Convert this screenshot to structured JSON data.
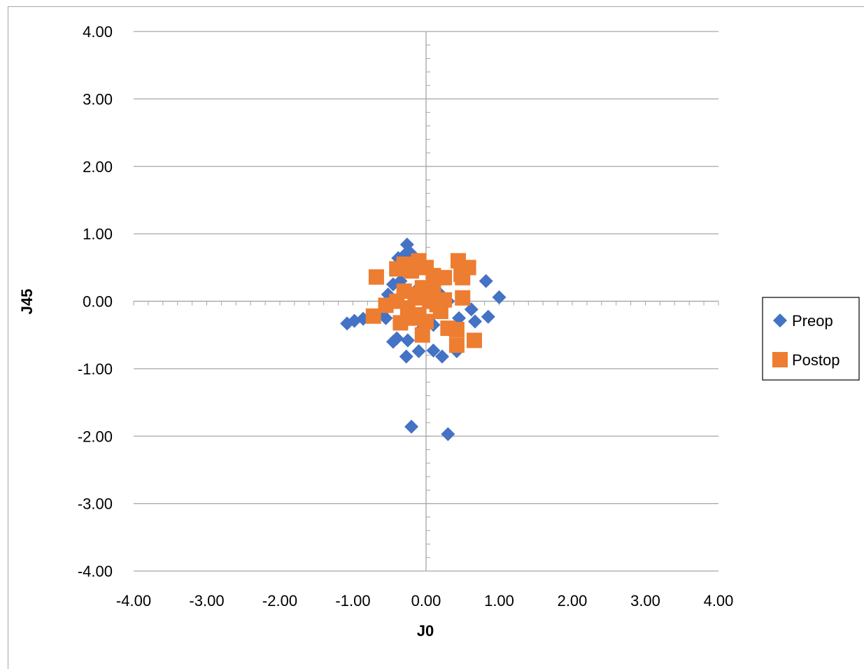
{
  "chart_data": {
    "type": "scatter",
    "xlabel": "J0",
    "ylabel": "J45",
    "xlim": [
      -4,
      4
    ],
    "ylim": [
      -4,
      4
    ],
    "x_ticks": [
      "-4.00",
      "-3.00",
      "-2.00",
      "-1.00",
      "0.00",
      "1.00",
      "2.00",
      "3.00",
      "4.00"
    ],
    "y_ticks": [
      "-4.00",
      "-3.00",
      "-2.00",
      "-1.00",
      "0.00",
      "1.00",
      "2.00",
      "3.00",
      "4.00"
    ],
    "grid": "horizontal major",
    "legend": "right",
    "series": [
      {
        "name": "Preop",
        "marker": "diamond",
        "color": "#4472c4",
        "points": [
          [
            -1.08,
            -0.33
          ],
          [
            -0.98,
            -0.29
          ],
          [
            -0.86,
            -0.26
          ],
          [
            -0.75,
            -0.22
          ],
          [
            -0.55,
            -0.25
          ],
          [
            -0.45,
            -0.6
          ],
          [
            -0.4,
            -0.55
          ],
          [
            -0.25,
            -0.58
          ],
          [
            -0.27,
            -0.82
          ],
          [
            -0.1,
            -0.74
          ],
          [
            0.1,
            -0.73
          ],
          [
            0.22,
            -0.82
          ],
          [
            0.42,
            -0.74
          ],
          [
            0.45,
            -0.25
          ],
          [
            0.62,
            -0.12
          ],
          [
            0.67,
            -0.3
          ],
          [
            0.85,
            -0.23
          ],
          [
            0.82,
            0.3
          ],
          [
            1.0,
            0.06
          ],
          [
            -0.26,
            0.84
          ],
          [
            -0.38,
            0.64
          ],
          [
            -0.3,
            0.68
          ],
          [
            -0.2,
            0.7
          ],
          [
            -0.45,
            0.25
          ],
          [
            -0.52,
            0.1
          ],
          [
            -0.35,
            0.3
          ],
          [
            -0.1,
            0.2
          ],
          [
            0.05,
            0.15
          ],
          [
            0.2,
            0.1
          ],
          [
            -0.15,
            -0.2
          ],
          [
            0.1,
            -0.35
          ],
          [
            -0.05,
            -0.4
          ],
          [
            0.3,
            0.0
          ],
          [
            -0.6,
            -0.15
          ],
          [
            -0.2,
            -1.86
          ],
          [
            0.3,
            -1.97
          ]
        ]
      },
      {
        "name": "Postop",
        "marker": "square",
        "color": "#ed7d31",
        "points": [
          [
            -0.68,
            0.36
          ],
          [
            -0.72,
            -0.22
          ],
          [
            -0.55,
            -0.06
          ],
          [
            -0.4,
            0.48
          ],
          [
            -0.3,
            0.55
          ],
          [
            -0.2,
            0.45
          ],
          [
            -0.1,
            0.6
          ],
          [
            0.0,
            0.5
          ],
          [
            0.1,
            0.38
          ],
          [
            -0.4,
            0.0
          ],
          [
            -0.35,
            -0.32
          ],
          [
            -0.25,
            -0.1
          ],
          [
            -0.15,
            0.1
          ],
          [
            -0.05,
            0.2
          ],
          [
            0.05,
            0.0
          ],
          [
            0.15,
            -0.05
          ],
          [
            0.25,
            0.02
          ],
          [
            -0.1,
            -0.2
          ],
          [
            0.0,
            -0.3
          ],
          [
            -0.05,
            -0.5
          ],
          [
            0.1,
            0.25
          ],
          [
            0.2,
            -0.15
          ],
          [
            0.3,
            -0.4
          ],
          [
            0.42,
            -0.42
          ],
          [
            0.44,
            0.6
          ],
          [
            0.48,
            0.4
          ],
          [
            0.5,
            0.35
          ],
          [
            0.58,
            0.5
          ],
          [
            0.5,
            0.05
          ],
          [
            0.42,
            -0.65
          ],
          [
            0.66,
            -0.58
          ],
          [
            0.25,
            0.35
          ],
          [
            -0.3,
            0.15
          ],
          [
            -0.2,
            -0.25
          ],
          [
            0.08,
            0.1
          ],
          [
            -0.08,
            0.05
          ]
        ]
      }
    ]
  }
}
